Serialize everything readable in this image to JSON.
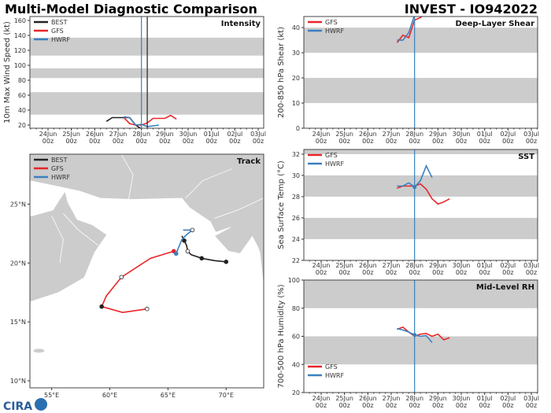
{
  "title_left": "Multi-Model Diagnostic Comparison",
  "title_right": "INVEST - IO942022",
  "logo_text": "CIRA",
  "colors": {
    "BEST": "#222222",
    "GFS": "#e8262a",
    "HWRF": "#3a80c0",
    "band": "#cccccc",
    "land": "#cccccc"
  },
  "time_ticks": [
    {
      "day": "24Jun",
      "hour": "00z"
    },
    {
      "day": "25Jun",
      "hour": "00z"
    },
    {
      "day": "26Jun",
      "hour": "00z"
    },
    {
      "day": "27Jun",
      "hour": "00z"
    },
    {
      "day": "28Jun",
      "hour": "00z"
    },
    {
      "day": "29Jun",
      "hour": "00z"
    },
    {
      "day": "30Jun",
      "hour": "00z"
    },
    {
      "day": "01Jul",
      "hour": "00z"
    },
    {
      "day": "02Jul",
      "hour": "00z"
    },
    {
      "day": "03Jul",
      "hour": "00z"
    }
  ],
  "chart_data": [
    {
      "id": "intensity",
      "type": "line",
      "title": "Intensity",
      "ylabel": "10m Max Wind Speed (kt)",
      "xlim": [
        "2022-06-23T05",
        "2022-07-03T06"
      ],
      "ylim": [
        15.8,
        165.3
      ],
      "yticks": [
        20,
        40,
        60,
        80,
        100,
        120,
        140,
        160
      ],
      "bands": [
        [
          34,
          64
        ],
        [
          83,
          96
        ],
        [
          113,
          137
        ]
      ],
      "legend": "top-left",
      "vlines": [
        {
          "x": "2022-06-28T00",
          "color": "HWRF"
        },
        {
          "x": "2022-06-28T06",
          "color": "BEST"
        }
      ],
      "series": [
        {
          "name": "BEST",
          "x": [
            "2022-06-26T12",
            "2022-06-26T18",
            "2022-06-27T06",
            "2022-06-27T12",
            "2022-06-27T18",
            "2022-06-28T00",
            "2022-06-28T06"
          ],
          "y": [
            25,
            30,
            30,
            30,
            20,
            15,
            15
          ]
        },
        {
          "name": "GFS",
          "x": [
            "2022-06-27T06",
            "2022-06-27T12",
            "2022-06-27T18",
            "2022-06-28T00",
            "2022-06-28T06",
            "2022-06-28T12",
            "2022-06-28T18",
            "2022-06-29T00",
            "2022-06-29T06",
            "2022-06-29T12"
          ],
          "y": [
            30,
            22,
            20,
            20,
            23,
            29,
            29,
            29,
            33,
            28
          ]
        },
        {
          "name": "HWRF",
          "x": [
            "2022-06-27T06",
            "2022-06-27T12",
            "2022-06-27T18",
            "2022-06-28T00",
            "2022-06-28T06",
            "2022-06-28T12",
            "2022-06-28T18"
          ],
          "y": [
            31,
            30,
            20,
            21,
            18,
            19,
            20
          ]
        }
      ]
    },
    {
      "id": "shear",
      "type": "line",
      "title": "Deep-Layer Shear",
      "ylabel": "200-850 hPa Shear (kt)",
      "ylim": [
        0,
        44.4
      ],
      "yticks": [
        0,
        10,
        20,
        30,
        40
      ],
      "bands": [
        [
          10,
          20
        ],
        [
          30,
          40
        ]
      ],
      "legend": "top-left",
      "vlines": [
        {
          "x": "2022-06-28T00",
          "color": "HWRF"
        }
      ],
      "series": [
        {
          "name": "GFS",
          "x": [
            "2022-06-27T06",
            "2022-06-27T12",
            "2022-06-27T18",
            "2022-06-28T00",
            "2022-06-28T06",
            "2022-06-28T12"
          ],
          "y": [
            34,
            37,
            36,
            43,
            44,
            46
          ]
        },
        {
          "name": "HWRF",
          "x": [
            "2022-06-27T06",
            "2022-06-27T12",
            "2022-06-27T18",
            "2022-06-28T00"
          ],
          "y": [
            35,
            35,
            38,
            45
          ],
          "marker_at": "2022-06-28T00"
        }
      ]
    },
    {
      "id": "sst",
      "type": "line",
      "title": "SST",
      "ylabel": "Sea Surface Temp (°C)",
      "ylim": [
        22,
        32.44
      ],
      "yticks": [
        22,
        24,
        26,
        28,
        30,
        32
      ],
      "bands": [
        [
          24,
          26
        ],
        [
          28,
          30
        ],
        [
          32,
          33
        ]
      ],
      "legend": "top-left",
      "vlines": [
        {
          "x": "2022-06-28T00",
          "color": "HWRF"
        }
      ],
      "series": [
        {
          "name": "GFS",
          "x": [
            "2022-06-27T06",
            "2022-06-27T12",
            "2022-06-28T00",
            "2022-06-28T06",
            "2022-06-28T12",
            "2022-06-28T18",
            "2022-06-29T00",
            "2022-06-29T06",
            "2022-06-29T12"
          ],
          "y": [
            28.8,
            29.0,
            29.0,
            29.2,
            28.7,
            27.8,
            27.3,
            27.5,
            27.8
          ]
        },
        {
          "name": "HWRF",
          "x": [
            "2022-06-27T06",
            "2022-06-27T12",
            "2022-06-27T18",
            "2022-06-28T00",
            "2022-06-28T06",
            "2022-06-28T12",
            "2022-06-28T18"
          ],
          "y": [
            29.0,
            29.0,
            29.3,
            28.9,
            29.5,
            30.9,
            29.8
          ],
          "marker_at": "2022-06-28T00"
        }
      ]
    },
    {
      "id": "rh",
      "type": "line",
      "title": "Mid-Level RH",
      "ylabel": "700-500 hPa Humidity (%)",
      "ylim": [
        20,
        100
      ],
      "yticks": [
        20,
        40,
        60,
        80,
        100
      ],
      "bands": [
        [
          40,
          60
        ],
        [
          80,
          100
        ]
      ],
      "legend": "bottom-left",
      "vlines": [
        {
          "x": "2022-06-28T00",
          "color": "HWRF"
        }
      ],
      "series": [
        {
          "name": "GFS",
          "x": [
            "2022-06-27T06",
            "2022-06-27T12",
            "2022-06-27T18",
            "2022-06-28T00",
            "2022-06-28T06",
            "2022-06-28T12",
            "2022-06-28T18",
            "2022-06-29T00",
            "2022-06-29T06",
            "2022-06-29T12"
          ],
          "y": [
            65,
            66.5,
            63,
            60,
            61.5,
            62,
            60,
            61.5,
            57.5,
            59
          ]
        },
        {
          "name": "HWRF",
          "x": [
            "2022-06-27T06",
            "2022-06-27T12",
            "2022-06-27T18",
            "2022-06-28T00",
            "2022-06-28T06",
            "2022-06-28T12",
            "2022-06-28T18"
          ],
          "y": [
            65.5,
            64.5,
            63,
            61,
            60,
            60.5,
            55.5
          ],
          "marker_at": "2022-06-28T00"
        }
      ]
    },
    {
      "id": "track",
      "type": "line",
      "title": "Track",
      "legend": "top-left",
      "xlim": [
        53.13,
        73.23
      ],
      "ylim": [
        9.4,
        29.24
      ],
      "xticks": [
        {
          "v": 55,
          "label": "55°E"
        },
        {
          "v": 60,
          "label": "60°E"
        },
        {
          "v": 65,
          "label": "65°E"
        },
        {
          "v": 70,
          "label": "70°E"
        }
      ],
      "yticks": [
        {
          "v": 10,
          "label": "10°N"
        },
        {
          "v": 15,
          "label": "15°N"
        },
        {
          "v": 20,
          "label": "20°N"
        },
        {
          "v": 25,
          "label": "25°N"
        }
      ],
      "series": [
        {
          "name": "BEST",
          "lon": [
            70.0,
            69.0,
            67.9,
            67.0,
            66.7,
            66.6,
            66.4,
            66.2
          ],
          "lat": [
            20.1,
            20.2,
            20.4,
            20.7,
            21.0,
            21.5,
            21.9,
            22.3
          ],
          "markers": [
            {
              "lon": 70.0,
              "lat": 20.1,
              "style": "filled"
            },
            {
              "lon": 67.9,
              "lat": 20.4,
              "style": "filled"
            },
            {
              "lon": 66.7,
              "lat": 21.0,
              "style": "open"
            },
            {
              "lon": 66.4,
              "lat": 21.9,
              "style": "filled"
            }
          ]
        },
        {
          "name": "GFS",
          "lon": [
            65.5,
            63.5,
            61.0,
            59.7,
            59.3,
            61.1,
            63.2
          ],
          "lat": [
            21.0,
            20.4,
            18.8,
            17.2,
            16.3,
            15.8,
            16.1
          ],
          "markers": [
            {
              "lon": 65.5,
              "lat": 21.0,
              "style": "start"
            },
            {
              "lon": 61.0,
              "lat": 18.8,
              "style": "open"
            },
            {
              "lon": 59.3,
              "lat": 16.3,
              "style": "filled"
            },
            {
              "lon": 63.2,
              "lat": 16.1,
              "style": "open"
            }
          ]
        },
        {
          "name": "HWRF",
          "lon": [
            65.7,
            66.2,
            66.6,
            67.1,
            66.3
          ],
          "lat": [
            20.8,
            22.0,
            22.4,
            22.8,
            22.8
          ],
          "markers": [
            {
              "lon": 65.7,
              "lat": 20.8,
              "style": "start"
            },
            {
              "lon": 67.1,
              "lat": 22.8,
              "style": "open"
            }
          ]
        }
      ]
    }
  ]
}
